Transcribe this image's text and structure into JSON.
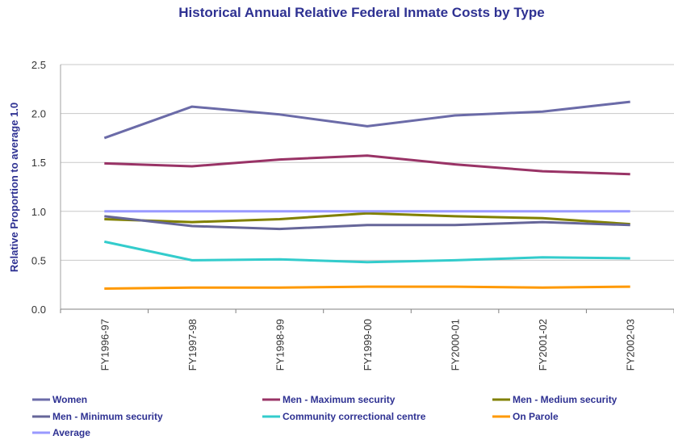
{
  "chart_data": {
    "type": "line",
    "title": "Historical Annual Relative Federal Inmate Costs by Type",
    "xlabel": "",
    "ylabel": "Relative Proportion to average 1.0",
    "categories": [
      "FY1996-97",
      "FY1997-98",
      "FY1998-99",
      "FY1999-00",
      "FY2000-01",
      "FY2001-02",
      "FY2002-03"
    ],
    "y_ticks": [
      "0.0",
      "0.5",
      "1.0",
      "1.5",
      "2.0",
      "2.5"
    ],
    "ylim": [
      0,
      2.5
    ],
    "grid": true,
    "legend_position": "bottom",
    "series": [
      {
        "name": "Women",
        "color": "#6B6BA8",
        "values": [
          1.75,
          2.07,
          1.99,
          1.87,
          1.98,
          2.02,
          2.12
        ]
      },
      {
        "name": "Men - Maximum security",
        "color": "#993366",
        "values": [
          1.49,
          1.46,
          1.53,
          1.57,
          1.48,
          1.41,
          1.38
        ]
      },
      {
        "name": "Men - Medium security",
        "color": "#808000",
        "values": [
          0.92,
          0.89,
          0.92,
          0.98,
          0.95,
          0.93,
          0.87
        ]
      },
      {
        "name": "Men - Minimum security",
        "color": "#666699",
        "values": [
          0.95,
          0.85,
          0.82,
          0.86,
          0.86,
          0.89,
          0.86
        ]
      },
      {
        "name": "Community correctional centre",
        "color": "#33CCCC",
        "values": [
          0.69,
          0.5,
          0.51,
          0.48,
          0.5,
          0.53,
          0.52
        ]
      },
      {
        "name": "On Parole",
        "color": "#FF9900",
        "values": [
          0.21,
          0.22,
          0.22,
          0.23,
          0.23,
          0.22,
          0.23
        ]
      },
      {
        "name": "Average",
        "color": "#9999FF",
        "values": [
          1.0,
          1.0,
          1.0,
          1.0,
          1.0,
          1.0,
          1.0
        ]
      }
    ]
  }
}
